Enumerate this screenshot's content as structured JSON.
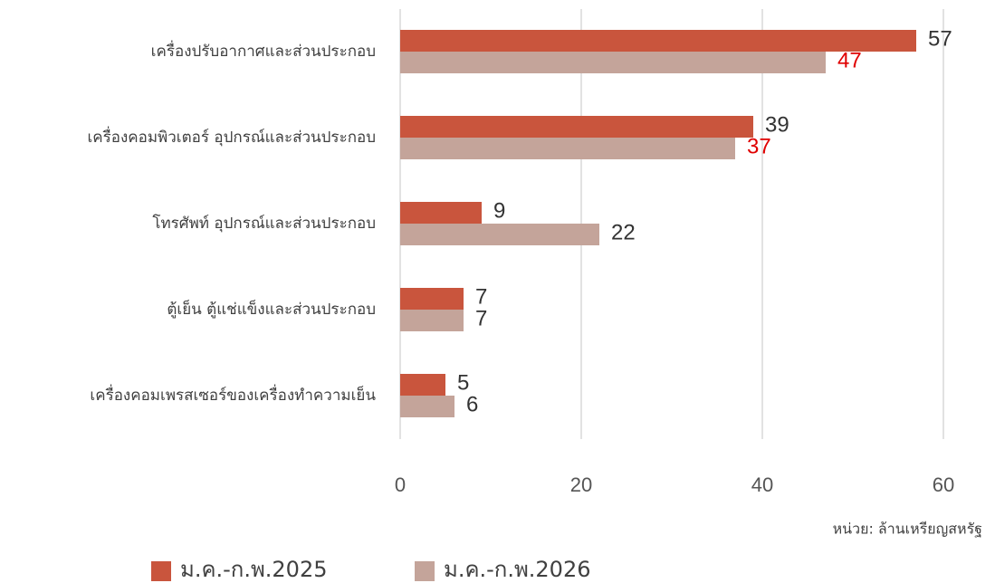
{
  "chart_data": {
    "type": "bar",
    "orientation": "horizontal",
    "categories": [
      "เครื่องปรับอากาศและส่วนประกอบ",
      "เครื่องคอมพิวเตอร์ อุปกรณ์และส่วนประกอบ",
      "โทรศัพท์ อุปกรณ์และส่วนประกอบ",
      "ตู้เย็น ตู้แช่แข็งและส่วนประกอบ",
      "เครื่องคอมเพรสเซอร์ของเครื่องทำความเย็น"
    ],
    "series": [
      {
        "name": "ม.ค.-ก.พ.2025",
        "color": "#c9553d",
        "values": [
          57,
          39,
          9,
          7,
          5
        ],
        "label_colors": [
          "#333333",
          "#333333",
          "#333333",
          "#333333",
          "#333333"
        ]
      },
      {
        "name": "ม.ค.-ก.พ.2026",
        "color": "#c4a49a",
        "values": [
          47,
          37,
          22,
          7,
          6
        ],
        "label_colors": [
          "#e00000",
          "#e00000",
          "#333333",
          "#333333",
          "#333333"
        ]
      }
    ],
    "xlim": [
      0,
      60
    ],
    "xticks": [
      0,
      20,
      40,
      60
    ],
    "grid": true,
    "note": "หน่วย: ล้านเหรียญสหรัฐ",
    "legend": "bottom"
  }
}
